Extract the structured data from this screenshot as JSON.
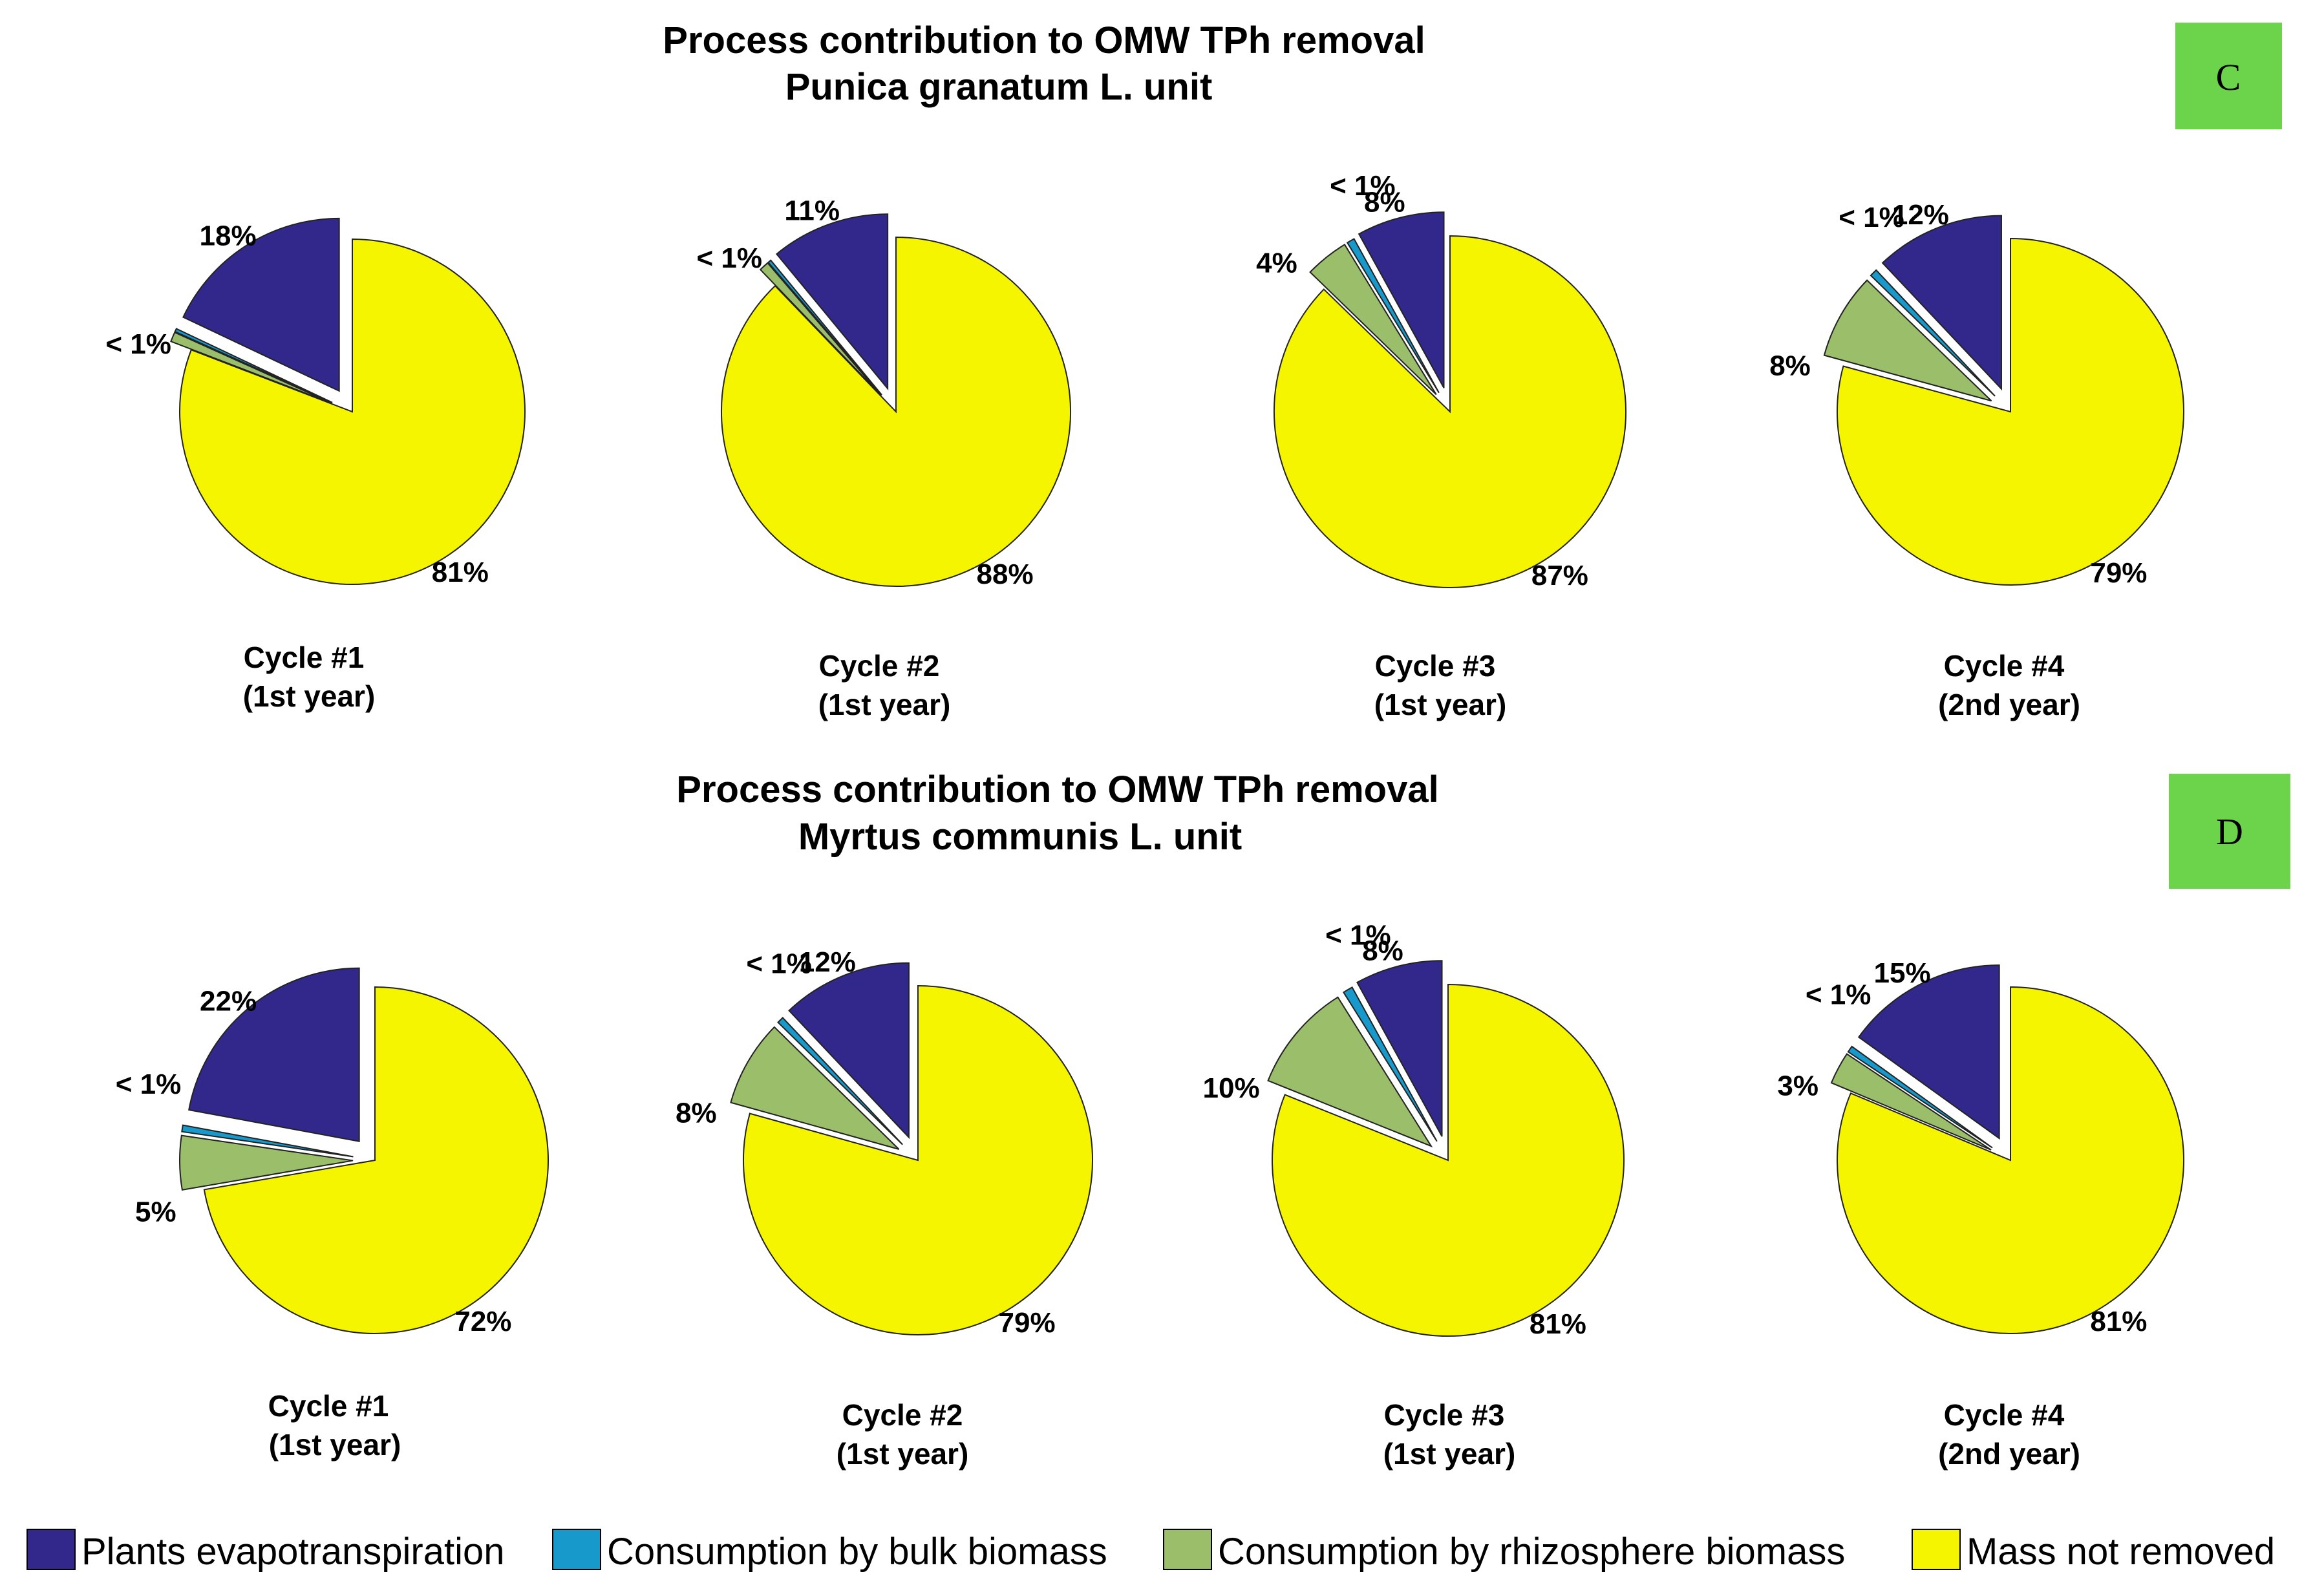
{
  "colors": {
    "Plants evapotranspiration": "#32288C",
    "Consumption by bulk biomass": "#1799CC",
    "Consumption by rhizosphere biomass": "#9BBE6A",
    "Mass not removed": "#F5F500",
    "badge": "#6CD44A"
  },
  "legend": [
    "Plants evapotranspiration",
    "Consumption by bulk biomass",
    "Consumption by rhizosphere biomass",
    "Mass not removed"
  ],
  "panels": [
    {
      "badge": "C",
      "title_line1": "Process contribution to OMW TPh removal",
      "title_line2": "Punica granatum L. unit",
      "cycles": [
        {
          "line1": "Cycle #1",
          "line2": "(1st year)"
        },
        {
          "line1": "Cycle #2",
          "line2": "(1st year)"
        },
        {
          "line1": "Cycle #3",
          "line2": "(1st year)"
        },
        {
          "line1": "Cycle #4",
          "line2": "(2nd year)"
        }
      ]
    },
    {
      "badge": "D",
      "title_line1": "Process contribution to OMW TPh removal",
      "title_line2": "Myrtus communis L. unit",
      "cycles": [
        {
          "line1": "Cycle #1",
          "line2": "(1st year)"
        },
        {
          "line1": "Cycle #2",
          "line2": "(1st year)"
        },
        {
          "line1": "Cycle #3",
          "line2": "(1st year)"
        },
        {
          "line1": "Cycle #4",
          "line2": "(2nd year)"
        }
      ]
    }
  ],
  "chart_data": [
    {
      "type": "pie",
      "series": [
        {
          "name": "Plants evapotranspiration",
          "value": 18,
          "label": "18%"
        },
        {
          "name": "Consumption by bulk biomass",
          "value": 0.3,
          "label": ""
        },
        {
          "name": "Consumption by rhizosphere biomass",
          "value": 0.9,
          "label": "< 1%"
        },
        {
          "name": "Mass not removed",
          "value": 81,
          "label": "81%"
        }
      ]
    },
    {
      "type": "pie",
      "series": [
        {
          "name": "Plants evapotranspiration",
          "value": 11,
          "label": "11%"
        },
        {
          "name": "Consumption by bulk biomass",
          "value": 0.3,
          "label": ""
        },
        {
          "name": "Consumption by rhizosphere biomass",
          "value": 0.9,
          "label": "< 1%"
        },
        {
          "name": "Mass not removed",
          "value": 88,
          "label": "88%"
        }
      ]
    },
    {
      "type": "pie",
      "series": [
        {
          "name": "Plants evapotranspiration",
          "value": 8,
          "label": "8%"
        },
        {
          "name": "Consumption by bulk biomass",
          "value": 0.7,
          "label": "< 1%"
        },
        {
          "name": "Consumption by rhizosphere biomass",
          "value": 4,
          "label": "4%"
        },
        {
          "name": "Mass not removed",
          "value": 87,
          "label": "87%"
        }
      ]
    },
    {
      "type": "pie",
      "series": [
        {
          "name": "Plants evapotranspiration",
          "value": 12,
          "label": "12%"
        },
        {
          "name": "Consumption by bulk biomass",
          "value": 0.7,
          "label": "< 1%"
        },
        {
          "name": "Consumption by rhizosphere biomass",
          "value": 8,
          "label": "8%"
        },
        {
          "name": "Mass not removed",
          "value": 79,
          "label": "79%"
        }
      ]
    },
    {
      "type": "pie",
      "series": [
        {
          "name": "Plants evapotranspiration",
          "value": 22,
          "label": "22%"
        },
        {
          "name": "Consumption by bulk biomass",
          "value": 0.6,
          "label": "< 1%"
        },
        {
          "name": "Consumption by rhizosphere biomass",
          "value": 5,
          "label": "5%"
        },
        {
          "name": "Mass not removed",
          "value": 72,
          "label": "72%"
        }
      ]
    },
    {
      "type": "pie",
      "series": [
        {
          "name": "Plants evapotranspiration",
          "value": 12,
          "label": "12%"
        },
        {
          "name": "Consumption by bulk biomass",
          "value": 0.6,
          "label": "< 1%"
        },
        {
          "name": "Consumption by rhizosphere biomass",
          "value": 8,
          "label": "8%"
        },
        {
          "name": "Mass not removed",
          "value": 79,
          "label": "79%"
        }
      ]
    },
    {
      "type": "pie",
      "series": [
        {
          "name": "Plants evapotranspiration",
          "value": 8,
          "label": "8%"
        },
        {
          "name": "Consumption by bulk biomass",
          "value": 0.9,
          "label": "< 1%"
        },
        {
          "name": "Consumption by rhizosphere biomass",
          "value": 10,
          "label": "10%"
        },
        {
          "name": "Mass not removed",
          "value": 81,
          "label": "81%"
        }
      ]
    },
    {
      "type": "pie",
      "series": [
        {
          "name": "Plants evapotranspiration",
          "value": 15,
          "label": "15%"
        },
        {
          "name": "Consumption by bulk biomass",
          "value": 0.6,
          "label": "< 1%"
        },
        {
          "name": "Consumption by rhizosphere biomass",
          "value": 3,
          "label": "3%"
        },
        {
          "name": "Mass not removed",
          "value": 81,
          "label": "81%"
        }
      ]
    }
  ]
}
